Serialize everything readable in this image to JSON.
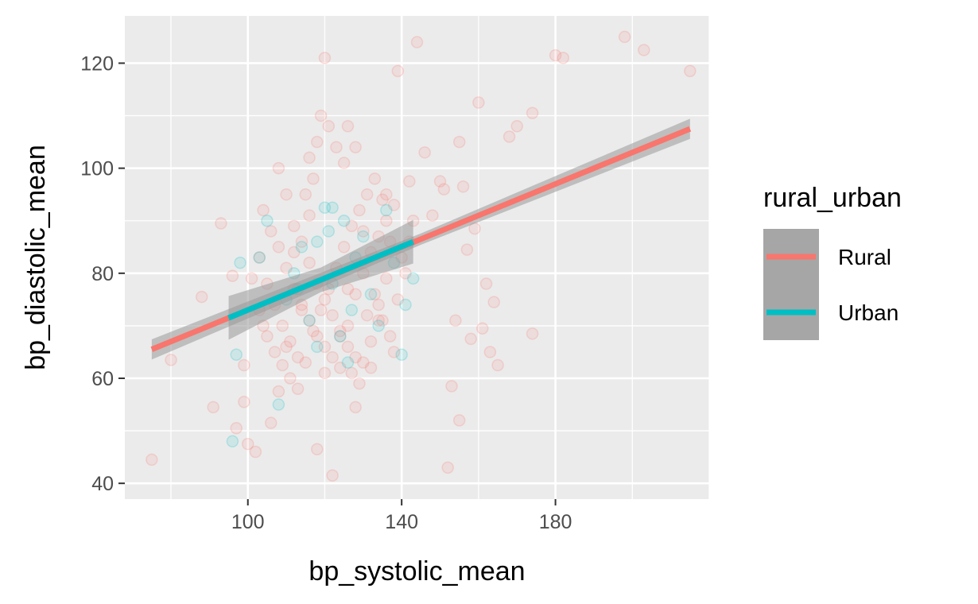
{
  "chart_data": {
    "type": "scatter",
    "xlabel": "bp_systolic_mean",
    "ylabel": "bp_diastolic_mean",
    "xlim": [
      68,
      220
    ],
    "ylim": [
      37,
      129
    ],
    "x_ticks": [
      100,
      140,
      180
    ],
    "y_ticks": [
      40,
      60,
      80,
      100,
      120
    ],
    "grid": true,
    "legend": {
      "title": "rural_urban",
      "position": "right"
    },
    "series": [
      {
        "name": "Rural",
        "color": "#F8766D",
        "points": [
          [
            75,
            44.5
          ],
          [
            80,
            63.5
          ],
          [
            88,
            75.5
          ],
          [
            91,
            54.5
          ],
          [
            93,
            89.5
          ],
          [
            96,
            79.5
          ],
          [
            97,
            50.5
          ],
          [
            99,
            62.5
          ],
          [
            99,
            55.5
          ],
          [
            100,
            47.5
          ],
          [
            102,
            46
          ],
          [
            104,
            70
          ],
          [
            106,
            51.5
          ],
          [
            108,
            57.5
          ],
          [
            110,
            66
          ],
          [
            112,
            84
          ],
          [
            114,
            73
          ],
          [
            116,
            91
          ],
          [
            118,
            46.5
          ],
          [
            120,
            61
          ],
          [
            122,
            41.5
          ],
          [
            124,
            68
          ],
          [
            126,
            77
          ],
          [
            128,
            54.5
          ],
          [
            130,
            88
          ],
          [
            132,
            62
          ],
          [
            134,
            71
          ],
          [
            136,
            95
          ],
          [
            138,
            65
          ],
          [
            140,
            83
          ],
          [
            139,
            118.5
          ],
          [
            144,
            124
          ],
          [
            146,
            103
          ],
          [
            148,
            91
          ],
          [
            150,
            97.5
          ],
          [
            151,
            96
          ],
          [
            152,
            43
          ],
          [
            153,
            58.5
          ],
          [
            154,
            71
          ],
          [
            155,
            52
          ],
          [
            155,
            105
          ],
          [
            156,
            96.5
          ],
          [
            157,
            84.5
          ],
          [
            158,
            67.5
          ],
          [
            159,
            88.5
          ],
          [
            160,
            112.5
          ],
          [
            161,
            69.5
          ],
          [
            162,
            78
          ],
          [
            163,
            65
          ],
          [
            164,
            74.5
          ],
          [
            165,
            62.5
          ],
          [
            168,
            106
          ],
          [
            170,
            108
          ],
          [
            174,
            110.5
          ],
          [
            174,
            68.5
          ],
          [
            180,
            121.5
          ],
          [
            182,
            121
          ],
          [
            198,
            125
          ],
          [
            203,
            122.5
          ],
          [
            215,
            118.5
          ],
          [
            108,
            100
          ],
          [
            110,
            95
          ],
          [
            112,
            89
          ],
          [
            114,
            86
          ],
          [
            116,
            82
          ],
          [
            118,
            78
          ],
          [
            120,
            75
          ],
          [
            122,
            72
          ],
          [
            124,
            69
          ],
          [
            126,
            66
          ],
          [
            128,
            64
          ],
          [
            130,
            63
          ],
          [
            132,
            67
          ],
          [
            134,
            74
          ],
          [
            136,
            79
          ],
          [
            104,
            92
          ],
          [
            106,
            88
          ],
          [
            108,
            85
          ],
          [
            110,
            81
          ],
          [
            112,
            77
          ],
          [
            114,
            74
          ],
          [
            116,
            71
          ],
          [
            118,
            68
          ],
          [
            120,
            66
          ],
          [
            122,
            64
          ],
          [
            124,
            62
          ],
          [
            126,
            70
          ],
          [
            128,
            76
          ],
          [
            130,
            80
          ],
          [
            132,
            84
          ],
          [
            134,
            87
          ],
          [
            136,
            90
          ],
          [
            138,
            93
          ],
          [
            105,
            78
          ],
          [
            107,
            74
          ],
          [
            109,
            70
          ],
          [
            111,
            67
          ],
          [
            113,
            64
          ],
          [
            115,
            63
          ],
          [
            117,
            69
          ],
          [
            119,
            73
          ],
          [
            121,
            77
          ],
          [
            123,
            81
          ],
          [
            125,
            85
          ],
          [
            127,
            89
          ],
          [
            129,
            92
          ],
          [
            131,
            95
          ],
          [
            133,
            98
          ],
          [
            135,
            94
          ],
          [
            137,
            86
          ],
          [
            119,
            110
          ],
          [
            121,
            108
          ],
          [
            123,
            104
          ],
          [
            125,
            101
          ],
          [
            117,
            98
          ],
          [
            115,
            95
          ],
          [
            103,
            83
          ],
          [
            101,
            79
          ],
          [
            103,
            73
          ],
          [
            105,
            68
          ],
          [
            107,
            65
          ],
          [
            109,
            62.5
          ],
          [
            111,
            60
          ],
          [
            113,
            58
          ],
          [
            127,
            61
          ],
          [
            129,
            59
          ],
          [
            131,
            72
          ],
          [
            133,
            76
          ],
          [
            135,
            71
          ],
          [
            137,
            68
          ],
          [
            139,
            75
          ],
          [
            141,
            80
          ],
          [
            142,
            86
          ],
          [
            143,
            90
          ],
          [
            142,
            97.5
          ],
          [
            120,
            121
          ],
          [
            118,
            105
          ],
          [
            116,
            102
          ],
          [
            126,
            108
          ],
          [
            128,
            104
          ]
        ]
      },
      {
        "name": "Urban",
        "color": "#00BFC4",
        "points": [
          [
            96,
            48
          ],
          [
            97,
            64.5
          ],
          [
            98,
            82
          ],
          [
            103,
            83
          ],
          [
            105,
            90
          ],
          [
            108,
            55
          ],
          [
            110,
            75
          ],
          [
            112,
            80
          ],
          [
            114,
            85
          ],
          [
            116,
            71
          ],
          [
            118,
            66
          ],
          [
            120,
            92.5
          ],
          [
            121,
            88
          ],
          [
            122,
            78
          ],
          [
            124,
            68
          ],
          [
            126,
            63
          ],
          [
            127,
            73
          ],
          [
            128,
            83
          ],
          [
            130,
            87
          ],
          [
            132,
            76
          ],
          [
            134,
            70
          ],
          [
            136,
            92
          ],
          [
            138,
            82
          ],
          [
            140,
            64.5
          ],
          [
            141,
            74
          ],
          [
            143,
            79
          ],
          [
            122,
            92.5
          ],
          [
            125,
            90
          ],
          [
            118,
            86
          ],
          [
            113,
            77
          ]
        ]
      }
    ],
    "fits": [
      {
        "series": "Rural",
        "x": [
          75,
          215
        ],
        "y": [
          65.5,
          107.5
        ],
        "ci": 1.2
      },
      {
        "series": "Urban",
        "x": [
          95,
          143
        ],
        "y": [
          71.5,
          86
        ],
        "ci": 2.6
      }
    ]
  }
}
